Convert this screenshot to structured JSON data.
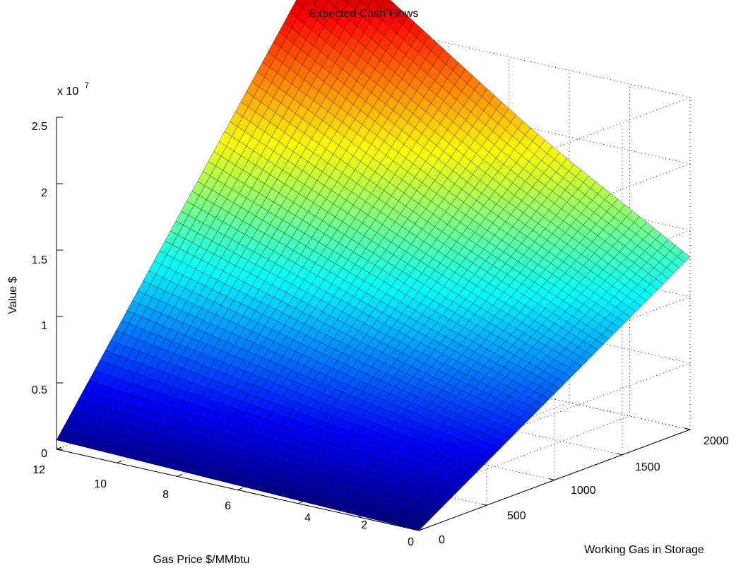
{
  "chart_data": {
    "type": "surface",
    "title": "Expected Cash Flows",
    "xlabel": "Gas Price $/MMbtu",
    "ylabel": "Working Gas in Storage",
    "zlabel": "Value $",
    "z_multiplier_label": "x 10",
    "z_multiplier_exponent": "7",
    "x_ticks": [
      "0",
      "2",
      "4",
      "6",
      "8",
      "10",
      "12"
    ],
    "y_ticks": [
      "0",
      "500",
      "1000",
      "1500",
      "2000"
    ],
    "z_ticks": [
      "0",
      "0.5",
      "1",
      "1.5",
      "2",
      "2.5"
    ],
    "xlim": [
      0,
      12
    ],
    "ylim": [
      0,
      2000
    ],
    "zlim": [
      0,
      25000000
    ],
    "grid": true,
    "colormap": "jet",
    "corner_values": [
      {
        "gas_price": 12,
        "working_gas": 0,
        "value": 700000
      },
      {
        "gas_price": 12,
        "working_gas": 2000,
        "value": 30000000
      },
      {
        "gas_price": 0,
        "working_gas": 2000,
        "value": 13000000
      },
      {
        "gas_price": 0,
        "working_gas": 0,
        "value": 0
      }
    ],
    "notable_points": [
      {
        "gas_price": 5,
        "working_gas": 0,
        "value": 0
      },
      {
        "gas_price": 5,
        "working_gas": 2000,
        "value": 16500000
      }
    ]
  }
}
